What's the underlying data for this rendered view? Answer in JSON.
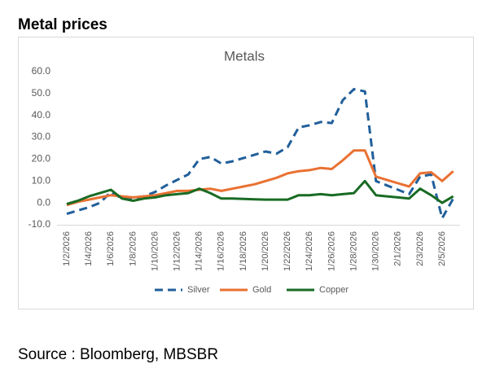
{
  "heading": "Metal prices",
  "source": "Source : Bloomberg, MBSBR",
  "chart_data": {
    "type": "line",
    "title": "Metals",
    "categories": [
      "1/2/2026",
      null,
      "1/4/2026",
      null,
      "1/6/2026",
      null,
      "1/8/2026",
      null,
      "1/10/2026",
      null,
      "1/12/2026",
      null,
      "1/14/2026",
      null,
      "1/16/2026",
      null,
      "1/18/2026",
      null,
      "1/20/2026",
      null,
      "1/22/2026",
      null,
      "1/24/2026",
      null,
      "1/26/2026",
      null,
      "1/28/2026",
      null,
      "1/30/2026",
      null,
      "2/1/2026",
      null,
      "2/3/2026",
      null,
      "2/5/2026",
      null
    ],
    "series": [
      {
        "name": "Silver",
        "color": "#215f9a",
        "dash": true,
        "values": [
          -5,
          -3.5,
          -2,
          0,
          5,
          2,
          2,
          3,
          5,
          8,
          10.5,
          13,
          20,
          21,
          18,
          19,
          20.5,
          22,
          23.5,
          22.5,
          25.5,
          34.5,
          35.5,
          37,
          36.5,
          47,
          52,
          51,
          10,
          8,
          6,
          4,
          12,
          13,
          -7,
          2
        ]
      },
      {
        "name": "Gold",
        "color": "#e97132",
        "dash": false,
        "values": [
          -1,
          0.5,
          1.5,
          2.5,
          3.5,
          3,
          2.5,
          3,
          3.5,
          4.5,
          5.5,
          5.5,
          6,
          6.5,
          5.5,
          6.5,
          7.5,
          8.5,
          10,
          11.5,
          13.5,
          14.5,
          15,
          16,
          15.5,
          19.5,
          24,
          24,
          12,
          10.5,
          9,
          7.5,
          13.5,
          14,
          10,
          14.5
        ]
      },
      {
        "name": "Copper",
        "color": "#196b24",
        "dash": false,
        "values": [
          -0.5,
          1,
          3,
          4.5,
          6,
          2,
          1,
          2,
          2.5,
          3.5,
          4,
          4.5,
          6.5,
          4.5,
          2,
          2,
          1.8,
          1.6,
          1.5,
          1.5,
          1.5,
          3.5,
          3.5,
          4,
          3.5,
          4,
          4.5,
          10,
          3.5,
          3,
          2.5,
          2,
          6.5,
          3.5,
          0,
          3
        ]
      }
    ],
    "ylim": [
      -10,
      60
    ],
    "yticks": [
      {
        "value": -10,
        "label": "-10.0"
      },
      {
        "value": 0,
        "label": "0.0"
      },
      {
        "value": 10,
        "label": "10.0"
      },
      {
        "value": 20,
        "label": "20.0"
      },
      {
        "value": 30,
        "label": "30.0"
      },
      {
        "value": 40,
        "label": "40.0"
      },
      {
        "value": 50,
        "label": "50.0"
      },
      {
        "value": 60,
        "label": "60.0"
      }
    ],
    "grid": false,
    "legend": "bottom"
  }
}
